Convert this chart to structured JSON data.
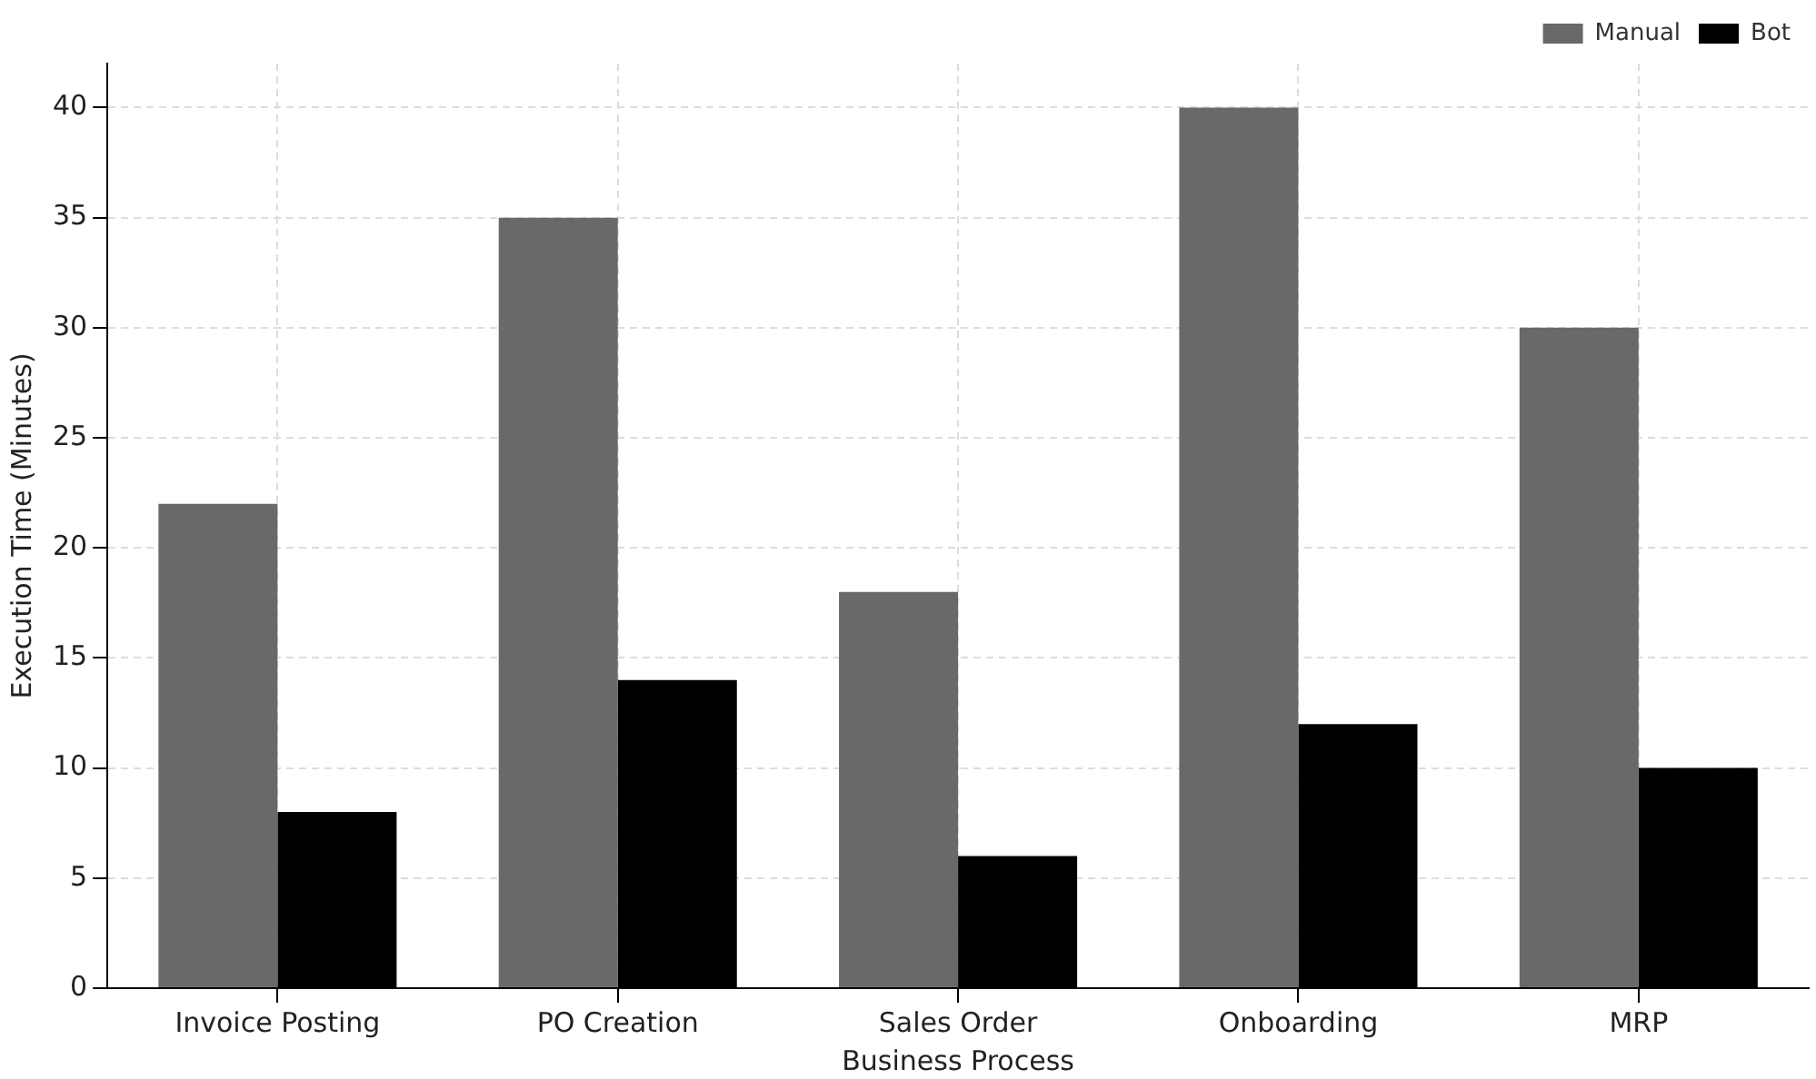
{
  "chart_data": {
    "type": "bar",
    "xlabel": "Business Process",
    "ylabel": "Execution Time (Minutes)",
    "categories": [
      "Invoice Posting",
      "PO Creation",
      "Sales Order",
      "Onboarding",
      "MRP"
    ],
    "series": [
      {
        "name": "Manual",
        "color": "#696969",
        "values": [
          22,
          35,
          18,
          40,
          30
        ]
      },
      {
        "name": "Bot",
        "color": "#000000",
        "values": [
          8,
          14,
          6,
          12,
          10
        ]
      }
    ],
    "ylim": [
      0,
      42
    ],
    "yticks": [
      0,
      5,
      10,
      15,
      20,
      25,
      30,
      35,
      40
    ],
    "grid": true,
    "legend": "top right"
  }
}
